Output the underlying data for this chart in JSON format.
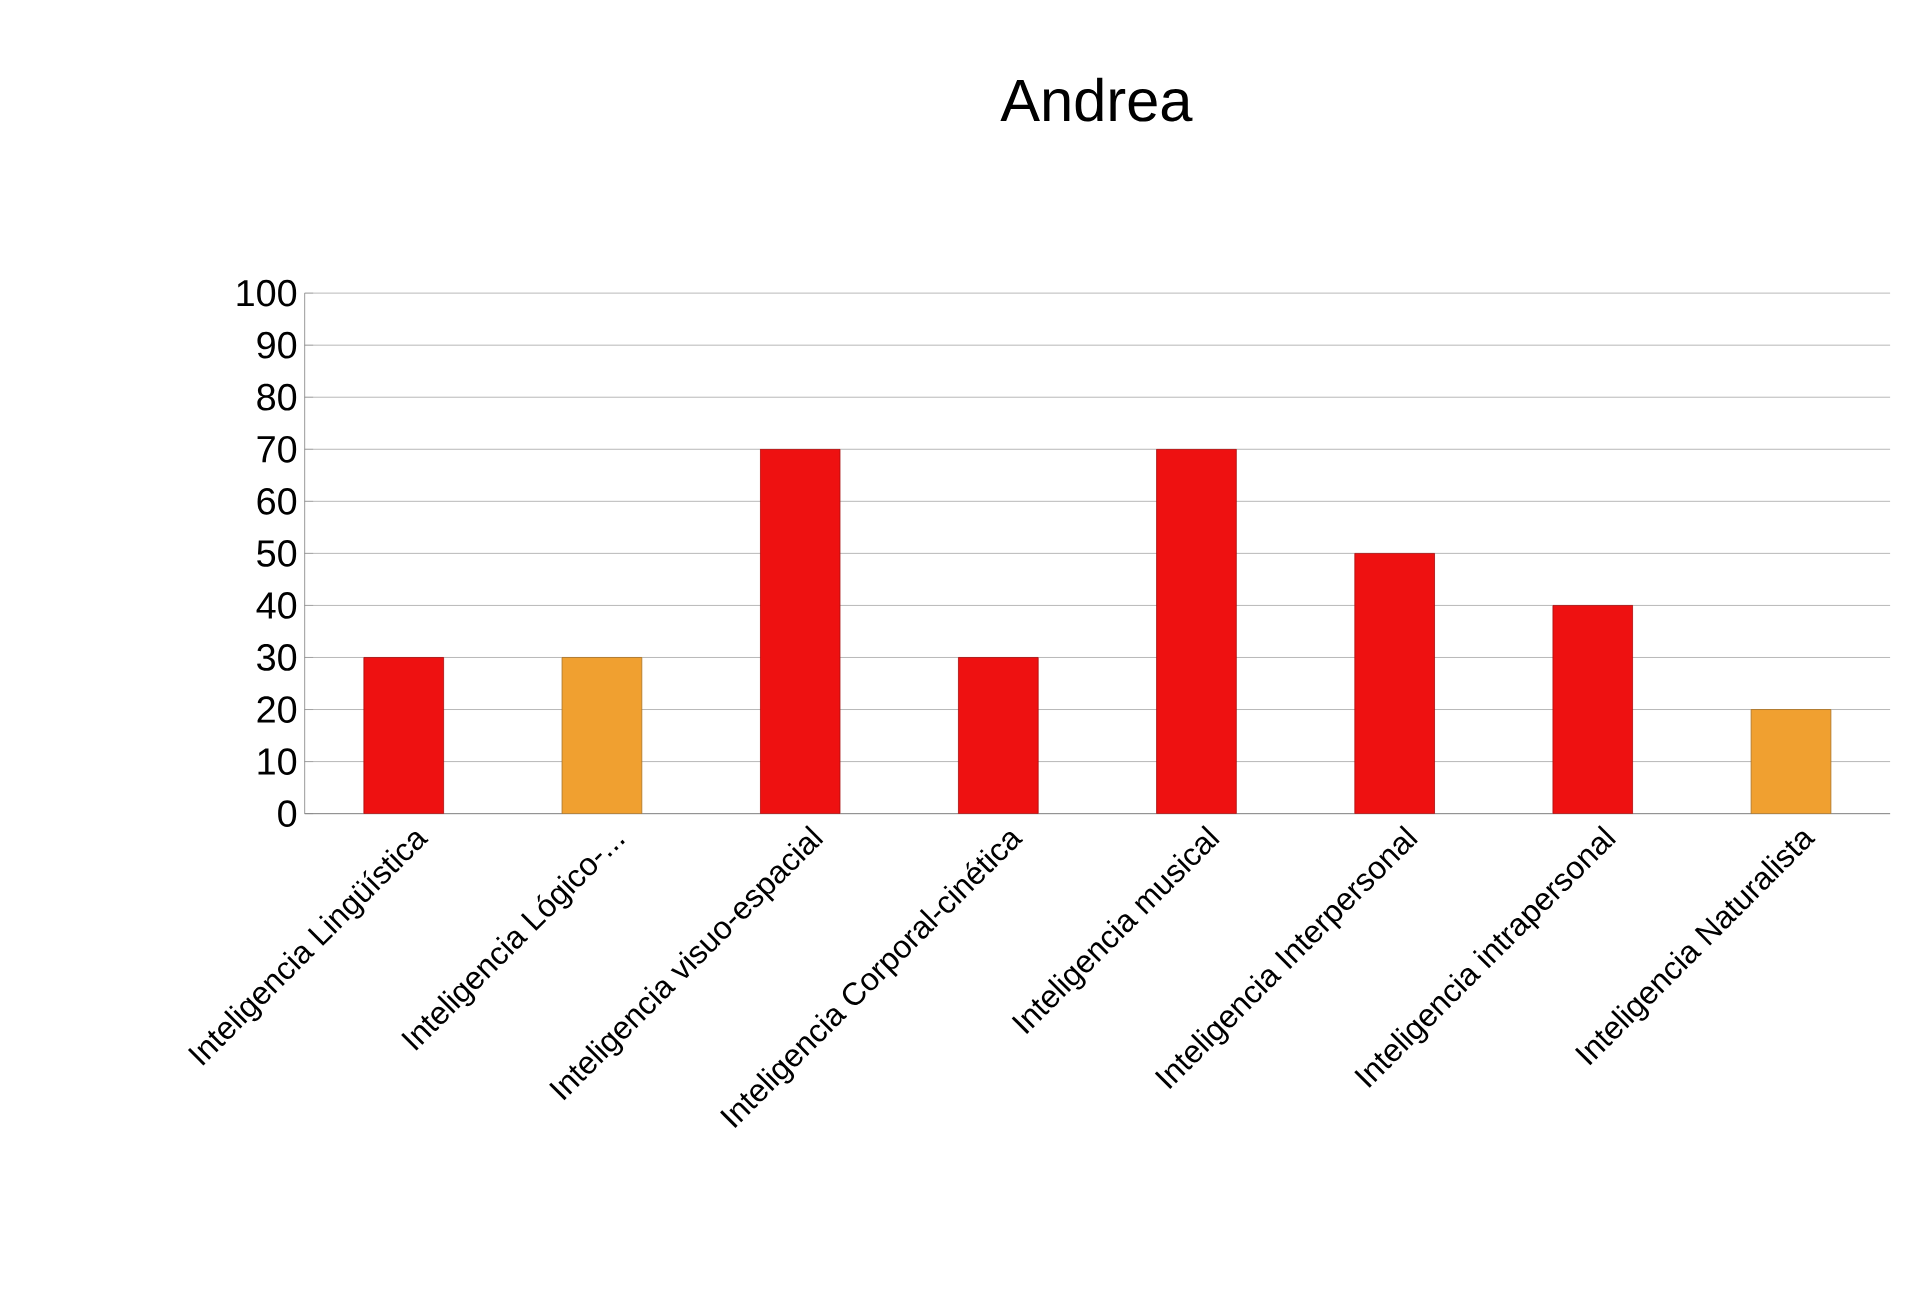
{
  "chart_data": {
    "type": "bar",
    "title": "Andrea",
    "categories": [
      "Inteligencia Lingüística",
      "Inteligencia Lógico-...",
      "Inteligencia visuo-espacial",
      "Inteligencia Corporal-cinética",
      "Inteligencia musical",
      "Inteligencia Interpersonal",
      "Inteligencia intrapersonal",
      "Inteligencia Naturalista"
    ],
    "values": [
      30,
      30,
      70,
      30,
      70,
      50,
      40,
      20
    ],
    "colors": [
      "#ee1111",
      "#f0a030",
      "#ee1111",
      "#ee1111",
      "#ee1111",
      "#ee1111",
      "#ee1111",
      "#f0a030"
    ],
    "ylim": [
      0,
      100
    ],
    "yticks": [
      0,
      10,
      20,
      30,
      40,
      50,
      60,
      70,
      80,
      90,
      100
    ],
    "grid": "y"
  }
}
